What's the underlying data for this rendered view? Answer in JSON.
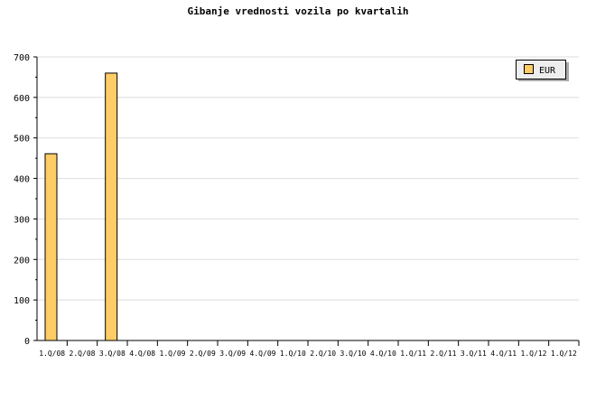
{
  "chart_data": {
    "type": "bar",
    "title": "Gibanje vrednosti vozila po kvartalih",
    "categories": [
      "1.Q/08",
      "2.Q/08",
      "3.Q/08",
      "4.Q/08",
      "1.Q/09",
      "2.Q/09",
      "3.Q/09",
      "4.Q/09",
      "1.Q/10",
      "2.Q/10",
      "3.Q/10",
      "4.Q/10",
      "1.Q/11",
      "2.Q/11",
      "3.Q/11",
      "4.Q/11",
      "1.Q/12",
      "1.Q/12"
    ],
    "series": [
      {
        "name": "EUR",
        "values": [
          461,
          null,
          660,
          null,
          null,
          null,
          null,
          null,
          null,
          null,
          null,
          null,
          null,
          null,
          null,
          null,
          null,
          null
        ],
        "color": "#ffcc66"
      }
    ],
    "ylim": [
      0,
      700
    ],
    "yticks": [
      0,
      100,
      200,
      300,
      400,
      500,
      600,
      700
    ],
    "grid": true,
    "legend": "top-right",
    "xlabel": "",
    "ylabel": ""
  }
}
